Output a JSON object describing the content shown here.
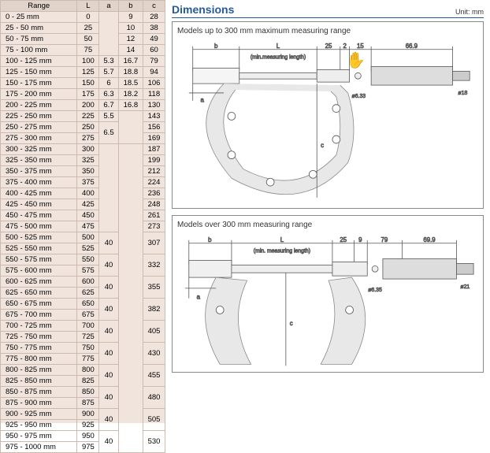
{
  "table": {
    "headers": [
      "Range",
      "L",
      "a",
      "b",
      "c"
    ],
    "rows": [
      [
        "0 - 25 mm",
        "0",
        "",
        "9",
        "28"
      ],
      [
        "25 - 50 mm",
        "25",
        "2.5",
        "10",
        "38"
      ],
      [
        "50 - 75 mm",
        "50",
        "",
        "12",
        "49"
      ],
      [
        "75 - 100 mm",
        "75",
        "",
        "14",
        "60"
      ],
      [
        "100 - 125 mm",
        "100",
        "5.3",
        "16.7",
        "79"
      ],
      [
        "125 - 150 mm",
        "125",
        "5.7",
        "18.8",
        "94"
      ],
      [
        "150 - 175 mm",
        "150",
        "6",
        "18.5",
        "106"
      ],
      [
        "175 - 200 mm",
        "175",
        "6.3",
        "18.2",
        "118"
      ],
      [
        "200 - 225 mm",
        "200",
        "6.7",
        "16.8",
        "130"
      ],
      [
        "225 - 250 mm",
        "225",
        "5.5",
        "",
        "143"
      ],
      [
        "250 - 275 mm",
        "250",
        "6.5",
        "18",
        "156"
      ],
      [
        "275 - 300 mm",
        "275",
        "",
        "",
        "169"
      ],
      [
        "300 - 325 mm",
        "300",
        "",
        "",
        "187"
      ],
      [
        "325 - 350 mm",
        "325",
        "",
        "",
        "199"
      ],
      [
        "350 - 375 mm",
        "350",
        "",
        "",
        "212"
      ],
      [
        "375 - 400 mm",
        "375",
        "18",
        "",
        "224"
      ],
      [
        "400 - 425 mm",
        "400",
        "",
        "",
        "236"
      ],
      [
        "425 - 450 mm",
        "425",
        "",
        "",
        "248"
      ],
      [
        "450 - 475 mm",
        "450",
        "",
        "",
        "261"
      ],
      [
        "475 - 500 mm",
        "475",
        "",
        "",
        "273"
      ],
      [
        "500 - 525 mm",
        "500",
        "40",
        "",
        "307"
      ],
      [
        "525 - 550 mm",
        "525",
        "15",
        "",
        ""
      ],
      [
        "550 - 575 mm",
        "550",
        "40",
        "",
        "332"
      ],
      [
        "575 - 600 mm",
        "575",
        "15",
        "",
        ""
      ],
      [
        "600 - 625 mm",
        "600",
        "40",
        "",
        "355"
      ],
      [
        "625 - 650 mm",
        "625",
        "15",
        "",
        ""
      ],
      [
        "650 - 675 mm",
        "650",
        "40",
        "28",
        "382"
      ],
      [
        "675 - 700 mm",
        "675",
        "15",
        "",
        ""
      ],
      [
        "700 - 725 mm",
        "700",
        "40",
        "",
        "405"
      ],
      [
        "725 - 750 mm",
        "725",
        "15",
        "",
        ""
      ],
      [
        "750 - 775 mm",
        "750",
        "40",
        "",
        "430"
      ],
      [
        "775 - 800 mm",
        "775",
        "15",
        "",
        ""
      ],
      [
        "800 - 825 mm",
        "800",
        "40",
        "",
        "455"
      ],
      [
        "825 - 850 mm",
        "825",
        "15",
        "",
        ""
      ],
      [
        "850 - 875 mm",
        "850",
        "40",
        "",
        "480"
      ],
      [
        "875 - 900 mm",
        "875",
        "15",
        "",
        ""
      ],
      [
        "900 - 925 mm",
        "900",
        "40",
        "",
        "505"
      ],
      [
        "925 - 950 mm",
        "925",
        "15",
        "",
        ""
      ],
      [
        "950 - 975 mm",
        "950",
        "40",
        "",
        "530"
      ],
      [
        "975 - 1000 mm",
        "975",
        "15",
        "",
        ""
      ]
    ],
    "a_spans": [
      4,
      1,
      1,
      1,
      1,
      1,
      1,
      2,
      8,
      2,
      2,
      2,
      2,
      2,
      2,
      2,
      2,
      2,
      2,
      2
    ],
    "b_spans": [
      1,
      1,
      1,
      1,
      1,
      1,
      1,
      1,
      1,
      3,
      28
    ],
    "c_spans": [
      1,
      1,
      1,
      1,
      1,
      1,
      1,
      1,
      1,
      1,
      1,
      1,
      1,
      1,
      1,
      1,
      1,
      1,
      1,
      1,
      2,
      2,
      2,
      2,
      2,
      2,
      2,
      2,
      2,
      2
    ]
  },
  "dimensions": {
    "title": "Dimensions",
    "unit": "Unit: mm",
    "fig1": {
      "title": "Models up to 300 mm maximum measuring range",
      "labels": {
        "b": "b",
        "L": "L",
        "min": "(min.measuring length)",
        "d25": "25",
        "d2": "2",
        "d15": "15",
        "d669": "66.9",
        "a": "a",
        "c": "c",
        "phi8": "ø8",
        "phi633": "ø6.33",
        "phi18": "ø18"
      }
    },
    "fig2": {
      "title": "Models over 300 mm measuring range",
      "labels": {
        "b": "b",
        "L": "L",
        "min": "(min. measuring length)",
        "d25": "25",
        "d9": "9",
        "d79": "79",
        "d699": "69.9",
        "a": "a",
        "c": "c",
        "phi8": "ø8",
        "phi635": "ø6.35",
        "phi21": "ø21"
      }
    }
  }
}
